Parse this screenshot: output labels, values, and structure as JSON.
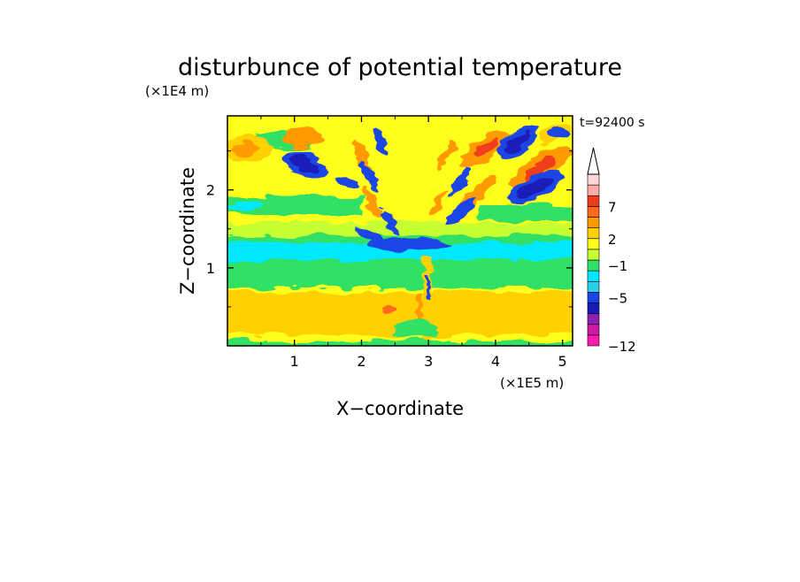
{
  "chart_data": {
    "type": "heatmap",
    "title": "disturbunce of potential temperature",
    "time_label": "t=92400 s",
    "xlabel": "X−coordinate",
    "ylabel": "Z−coordinate",
    "x_unit": "(×1E5 m)",
    "y_unit": "(×1E4 m)",
    "x_ticks": [
      "1",
      "2",
      "3",
      "4",
      "5"
    ],
    "x_tick_values": [
      1,
      2,
      3,
      4,
      5
    ],
    "y_ticks": [
      "1",
      "2"
    ],
    "y_tick_values": [
      1,
      2
    ],
    "xlim": [
      0,
      5.15
    ],
    "ylim": [
      0,
      2.95
    ],
    "colorbar": {
      "labels": [
        {
          "text": "7",
          "level": 7
        },
        {
          "text": "2",
          "level": 2
        },
        {
          "text": "−1",
          "level": -1
        },
        {
          "text": "−5",
          "level": -5
        },
        {
          "text": "−12",
          "level": -12
        }
      ],
      "colors": [
        "#ff1ab4",
        "#cc1aa6",
        "#8f1fb0",
        "#1a1ab8",
        "#1a44e6",
        "#2acfe8",
        "#00e8ff",
        "#33e066",
        "#c8ff33",
        "#ffff1a",
        "#ffd100",
        "#ff9a00",
        "#ff6a1a",
        "#f03c1a",
        "#ffaaaa",
        "#ffd6d6"
      ],
      "extend": "max"
    }
  }
}
